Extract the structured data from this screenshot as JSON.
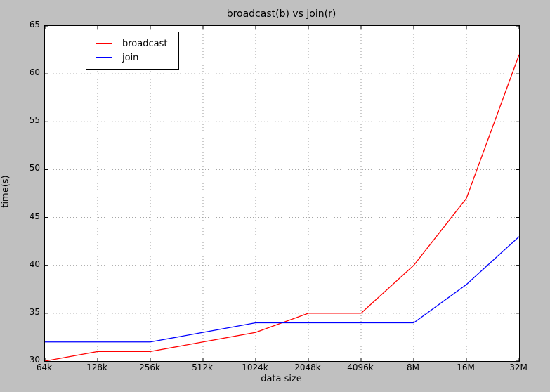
{
  "figure": {
    "background_color": "#c0c0c0",
    "plot_background_color": "#ffffff",
    "grid_color": "#999999",
    "axis_color": "#000000"
  },
  "legend": {
    "entries": [
      {
        "label": "broadcast",
        "color": "#ff0000"
      },
      {
        "label": "join",
        "color": "#0000ff"
      }
    ]
  },
  "chart_data": {
    "type": "line",
    "title": "broadcast(b) vs join(r)",
    "xlabel": "data size",
    "ylabel": "time(s)",
    "categories": [
      "64k",
      "128k",
      "256k",
      "512k",
      "1024k",
      "2048k",
      "4096k",
      "8M",
      "16M",
      "32M"
    ],
    "series": [
      {
        "name": "broadcast",
        "color": "#ff0000",
        "values": [
          30,
          31,
          31,
          32,
          33,
          35,
          35,
          40,
          47,
          62
        ]
      },
      {
        "name": "join",
        "color": "#0000ff",
        "values": [
          32,
          32,
          32,
          33,
          34,
          34,
          34,
          34,
          38,
          43
        ]
      }
    ],
    "ylim": [
      30,
      65
    ],
    "yticks": [
      30,
      35,
      40,
      45,
      50,
      55,
      60,
      65
    ],
    "grid": true,
    "grid_linestyle": "dotted",
    "legend_position": "upper left",
    "tick_direction": "in"
  }
}
